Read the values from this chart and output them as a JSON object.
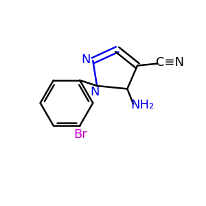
{
  "background_color": "#ffffff",
  "bond_color": "#000000",
  "n_color": "#0000ee",
  "br_color": "#cc00cc",
  "bond_width": 1.8,
  "figsize": [
    3.0,
    3.0
  ],
  "dpi": 100,
  "xlim": [
    0,
    10
  ],
  "ylim": [
    0,
    10
  ]
}
